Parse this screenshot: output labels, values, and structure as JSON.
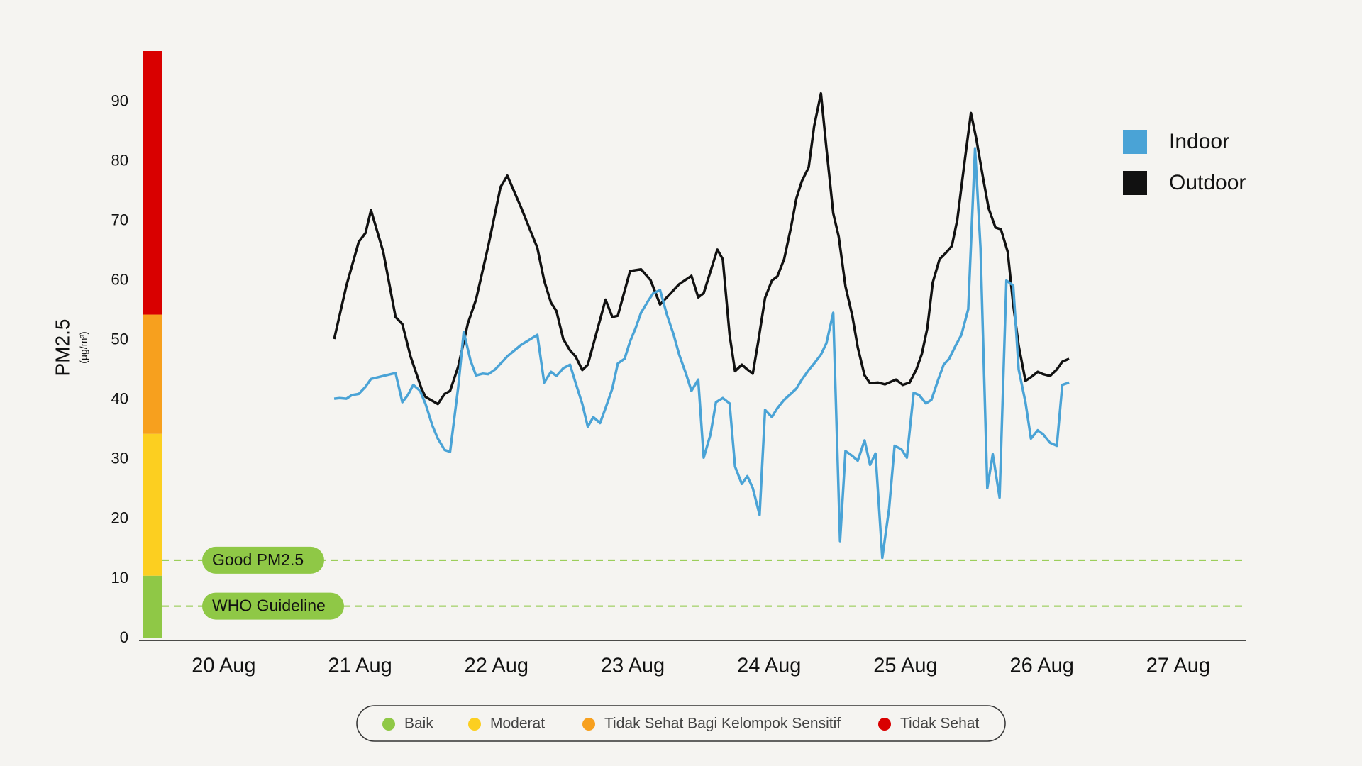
{
  "chart_data": {
    "type": "line",
    "y_label": "PM2.5",
    "y_unit": "(µg/m³)",
    "xlim": [
      19.41,
      27.5
    ],
    "xticks": [
      {
        "value": 20,
        "label": "20 Aug"
      },
      {
        "value": 21,
        "label": "21 Aug"
      },
      {
        "value": 22,
        "label": "22 Aug"
      },
      {
        "value": 23,
        "label": "23 Aug"
      },
      {
        "value": 24,
        "label": "24 Aug"
      },
      {
        "value": 25,
        "label": "25 Aug"
      },
      {
        "value": 26,
        "label": "26 Aug"
      },
      {
        "value": 27,
        "label": "27 Aug"
      }
    ],
    "ylim": [
      0,
      98.5
    ],
    "yticks": [
      0,
      10,
      20,
      30,
      40,
      50,
      60,
      70,
      80,
      90
    ],
    "legend": "right",
    "series": [
      {
        "name": "Indoor",
        "color": "#4aa3d6",
        "x": [
          20.81,
          20.85,
          20.9,
          20.94,
          20.99,
          21.04,
          21.08,
          21.17,
          21.26,
          21.31,
          21.35,
          21.39,
          21.44,
          21.48,
          21.53,
          21.57,
          21.62,
          21.66,
          21.72,
          21.76,
          21.81,
          21.85,
          21.9,
          21.94,
          21.99,
          22.08,
          22.18,
          22.3,
          22.35,
          22.4,
          22.44,
          22.49,
          22.54,
          22.58,
          22.63,
          22.67,
          22.71,
          22.76,
          22.8,
          22.85,
          22.89,
          22.94,
          22.98,
          23.02,
          23.06,
          23.11,
          23.15,
          23.2,
          23.25,
          23.3,
          23.34,
          23.39,
          23.43,
          23.48,
          23.52,
          23.57,
          23.61,
          23.66,
          23.71,
          23.75,
          23.8,
          23.84,
          23.88,
          23.93,
          23.97,
          24.02,
          24.06,
          24.11,
          24.2,
          24.24,
          24.29,
          24.33,
          24.38,
          24.42,
          24.47,
          24.52,
          24.56,
          24.61,
          24.65,
          24.7,
          24.74,
          24.78,
          24.83,
          24.88,
          24.92,
          24.97,
          25.01,
          25.06,
          25.1,
          25.15,
          25.19,
          25.24,
          25.28,
          25.32,
          25.37,
          25.41,
          25.46,
          25.51,
          25.55,
          25.6,
          25.64,
          25.69,
          25.74,
          25.79,
          25.83,
          25.88,
          25.92,
          25.97,
          26.01,
          26.06,
          26.11,
          26.15,
          26.2
        ],
        "values": [
          40.2,
          40.3,
          40.2,
          40.8,
          41.0,
          42.2,
          43.5,
          44.0,
          44.5,
          39.6,
          40.8,
          42.5,
          41.5,
          39.3,
          35.7,
          33.5,
          31.6,
          31.3,
          42.2,
          51.4,
          46.6,
          44.1,
          44.4,
          44.3,
          45.1,
          47.3,
          49.2,
          50.9,
          42.9,
          44.7,
          44.0,
          45.3,
          45.9,
          42.9,
          39.3,
          35.5,
          37.1,
          36.1,
          38.6,
          41.9,
          46.1,
          46.9,
          49.8,
          52.0,
          54.6,
          56.5,
          57.9,
          58.4,
          54.3,
          50.9,
          47.6,
          44.4,
          41.5,
          43.4,
          30.3,
          34.2,
          39.6,
          40.3,
          39.4,
          28.8,
          25.9,
          27.2,
          25.2,
          20.7,
          38.3,
          37.1,
          38.6,
          40.0,
          41.9,
          43.4,
          45.0,
          46.1,
          47.6,
          49.5,
          54.6,
          16.3,
          31.4,
          30.6,
          29.8,
          33.2,
          29.1,
          31.0,
          13.5,
          21.8,
          32.3,
          31.7,
          30.3,
          41.2,
          40.8,
          39.4,
          40.0,
          43.4,
          45.9,
          46.9,
          49.2,
          50.9,
          55.2,
          82.2,
          65.5,
          25.2,
          30.9,
          23.6,
          60.0,
          59.2,
          45.1,
          39.6,
          33.5,
          34.9,
          34.2,
          32.8,
          32.3,
          42.5,
          42.9
        ]
      },
      {
        "name": "Outdoor",
        "color": "#111111",
        "x": [
          20.81,
          20.9,
          20.99,
          21.04,
          21.08,
          21.17,
          21.26,
          21.31,
          21.37,
          21.45,
          21.48,
          21.57,
          21.62,
          21.66,
          21.72,
          21.79,
          21.85,
          21.94,
          22.03,
          22.08,
          22.18,
          22.3,
          22.35,
          22.4,
          22.44,
          22.49,
          22.54,
          22.58,
          22.63,
          22.67,
          22.73,
          22.8,
          22.85,
          22.89,
          22.98,
          23.06,
          23.13,
          23.2,
          23.25,
          23.34,
          23.43,
          23.48,
          23.52,
          23.62,
          23.66,
          23.71,
          23.75,
          23.8,
          23.84,
          23.88,
          23.92,
          23.97,
          24.02,
          24.06,
          24.11,
          24.16,
          24.2,
          24.24,
          24.29,
          24.33,
          24.38,
          24.42,
          24.47,
          24.51,
          24.56,
          24.61,
          24.65,
          24.7,
          24.74,
          24.8,
          24.85,
          24.93,
          24.98,
          25.03,
          25.08,
          25.12,
          25.16,
          25.2,
          25.25,
          25.29,
          25.34,
          25.38,
          25.43,
          25.48,
          25.52,
          25.57,
          25.61,
          25.66,
          25.7,
          25.75,
          25.79,
          25.83,
          25.88,
          25.92,
          25.97,
          26.01,
          26.06,
          26.11,
          26.15,
          26.2
        ],
        "values": [
          50.2,
          59.2,
          66.5,
          68.0,
          71.8,
          64.8,
          53.9,
          52.7,
          47.3,
          41.9,
          40.5,
          39.3,
          41.0,
          41.5,
          45.6,
          52.8,
          56.8,
          65.8,
          75.7,
          77.6,
          72.3,
          65.5,
          60.0,
          56.3,
          54.9,
          50.2,
          48.3,
          47.3,
          45.0,
          45.9,
          50.9,
          56.8,
          53.9,
          54.1,
          61.6,
          61.9,
          60.1,
          56.0,
          57.2,
          59.4,
          60.8,
          57.2,
          57.9,
          65.2,
          63.6,
          50.9,
          44.8,
          45.9,
          45.1,
          44.4,
          49.8,
          57.1,
          60.0,
          60.7,
          63.6,
          68.9,
          73.8,
          76.7,
          79.0,
          85.9,
          91.4,
          82.2,
          71.3,
          67.4,
          59.0,
          54.1,
          48.8,
          44.1,
          42.8,
          42.9,
          42.6,
          43.4,
          42.5,
          42.9,
          45.1,
          47.7,
          52.0,
          59.7,
          63.6,
          64.5,
          65.8,
          70.2,
          79.3,
          88.1,
          83.7,
          77.1,
          72.1,
          68.9,
          68.6,
          64.8,
          56.0,
          49.1,
          43.2,
          43.8,
          44.7,
          44.3,
          44.0,
          45.1,
          46.4,
          46.9
        ]
      }
    ],
    "bands": [
      {
        "name": "Baik",
        "color": "#8fc846",
        "range": [
          0,
          10.5
        ]
      },
      {
        "name": "Moderat",
        "color": "#fccf20",
        "range": [
          10.5,
          34.3
        ]
      },
      {
        "name": "Tidak Sehat Bagi Kelompok Sensitif",
        "color": "#f7a01e",
        "range": [
          34.3,
          54.3
        ]
      },
      {
        "name": "Tidak Sehat",
        "color": "#d90000",
        "range": [
          54.3,
          98.5
        ]
      }
    ],
    "reference_lines": [
      {
        "label": "Good PM2.5",
        "value": 13.1,
        "color": "#8fc846"
      },
      {
        "label": "WHO Guideline",
        "value": 5.4,
        "color": "#8fc846"
      }
    ]
  }
}
